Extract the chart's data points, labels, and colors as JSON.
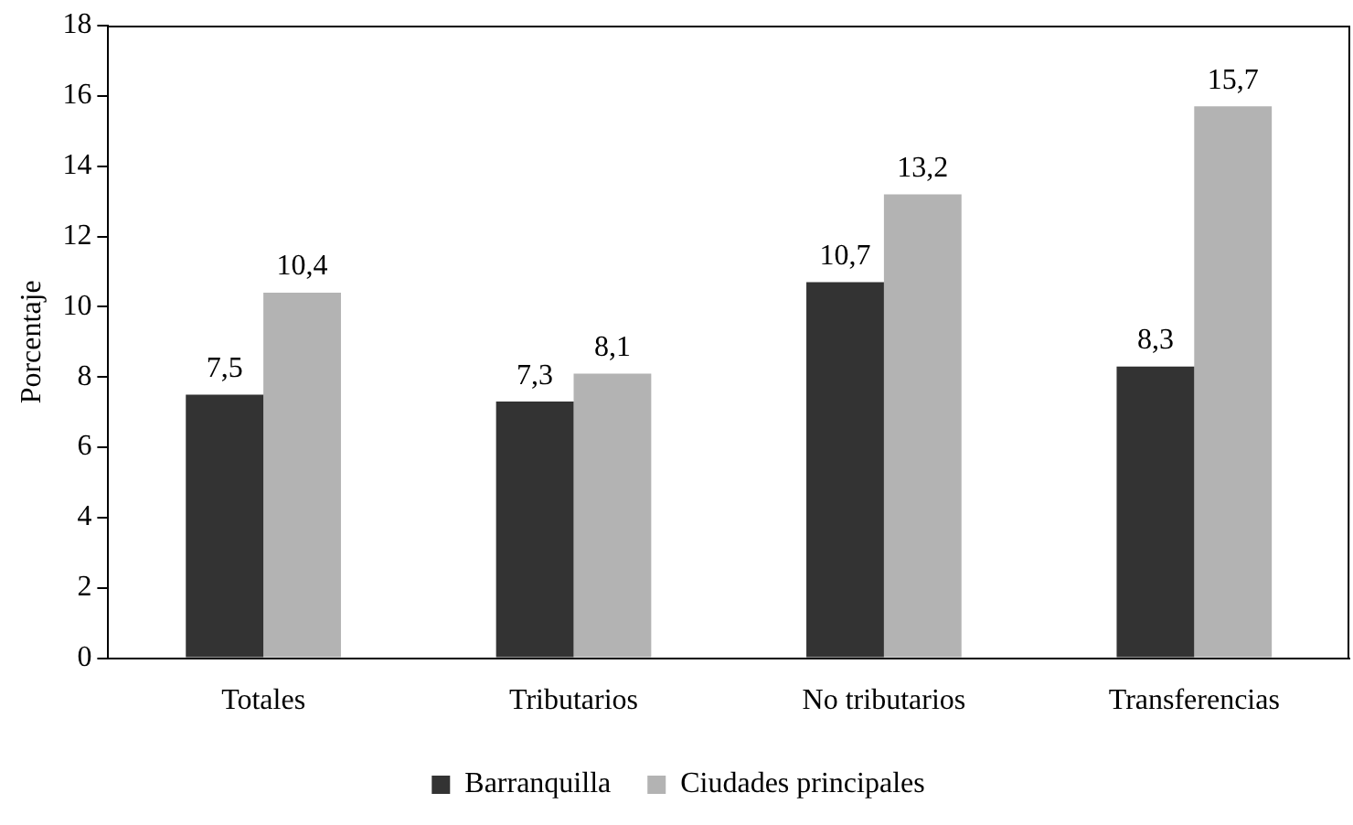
{
  "chart_data": {
    "type": "bar",
    "ylabel": "Porcentaje",
    "categories": [
      "Totales",
      "Tributarios",
      "No tributarios",
      "Transferencias"
    ],
    "series": [
      {
        "name": "Barranquilla",
        "color": "#333333",
        "values": [
          7.5,
          7.3,
          10.7,
          8.3
        ],
        "value_labels": [
          "7,5",
          "7,3",
          "10,7",
          "8,3"
        ]
      },
      {
        "name": "Ciudades principales",
        "color": "#b3b3b3",
        "values": [
          10.4,
          8.1,
          13.2,
          15.7
        ],
        "value_labels": [
          "10,4",
          "8,1",
          "13,2",
          "15,7"
        ]
      }
    ],
    "ylim": [
      0,
      18
    ],
    "yticks": [
      0,
      2,
      4,
      6,
      8,
      10,
      12,
      14,
      16,
      18
    ],
    "grid": false,
    "legend": "bottom"
  }
}
